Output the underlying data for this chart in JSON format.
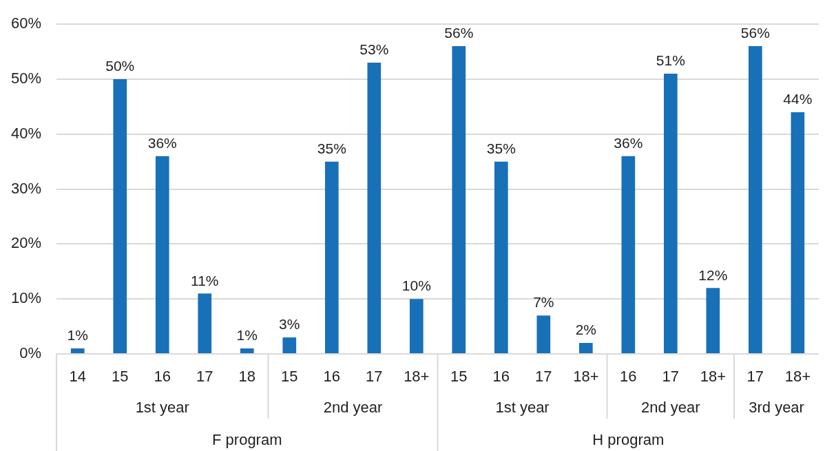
{
  "chart_data": {
    "type": "bar",
    "categories": [
      "14",
      "15",
      "16",
      "17",
      "18",
      "15",
      "16",
      "17",
      "18+",
      "15",
      "16",
      "17",
      "18+",
      "16",
      "17",
      "18+",
      "17",
      "18+"
    ],
    "values": [
      1,
      50,
      36,
      11,
      1,
      3,
      35,
      53,
      10,
      56,
      35,
      7,
      2,
      36,
      51,
      12,
      56,
      44
    ],
    "value_labels": [
      "1%",
      "50%",
      "36%",
      "11%",
      "1%",
      "3%",
      "35%",
      "53%",
      "10%",
      "56%",
      "35%",
      "7%",
      "2%",
      "36%",
      "51%",
      "12%",
      "56%",
      "44%"
    ],
    "color": "#1870b8",
    "ylim": [
      0,
      60
    ],
    "yticks": [
      {
        "value": 0,
        "label": "0%"
      },
      {
        "value": 10,
        "label": "10%"
      },
      {
        "value": 20,
        "label": "20%"
      },
      {
        "value": 30,
        "label": "30%"
      },
      {
        "value": 40,
        "label": "40%"
      },
      {
        "value": 50,
        "label": "50%"
      },
      {
        "value": 60,
        "label": "60%"
      }
    ],
    "grid": "y",
    "annotations": [
      "1st year",
      "2nd year",
      "1st year",
      "2nd year",
      "3rd year",
      "F program",
      "H program"
    ]
  }
}
